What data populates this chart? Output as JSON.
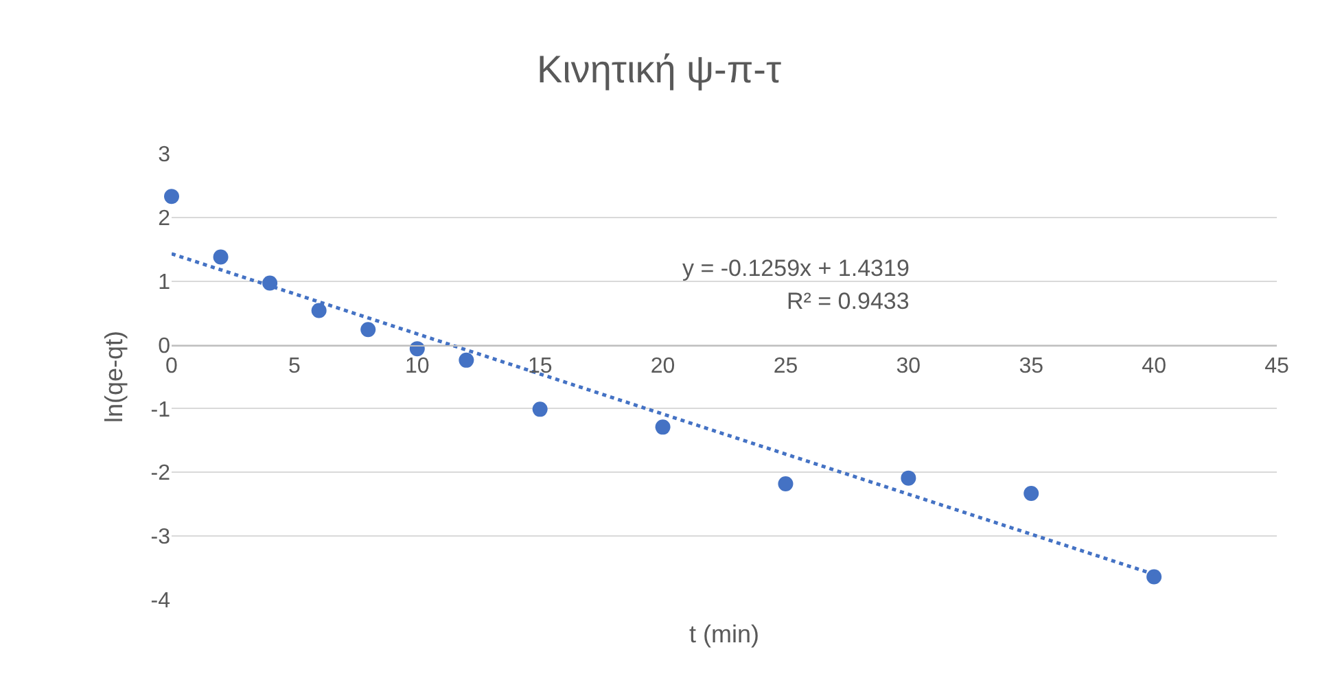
{
  "chart_data": {
    "type": "scatter",
    "title": "Κινητική ψ-π-τ",
    "xlabel": "t (min)",
    "ylabel": "ln(qe-qt)",
    "series": [
      {
        "color": "#4472c4",
        "marker": "circle",
        "x": [
          0,
          2,
          4,
          6,
          8,
          10,
          12,
          15,
          20,
          25,
          30,
          35,
          40
        ],
        "values": [
          2.33,
          1.38,
          0.97,
          0.54,
          0.24,
          -0.06,
          -0.24,
          -1.01,
          -1.29,
          -2.18,
          -2.09,
          -2.33,
          -3.64
        ]
      },
      {
        "type": "line",
        "color": "#4472c4",
        "line_style": "dotted",
        "marker": "none",
        "x": [
          0,
          40
        ],
        "values": [
          1.43,
          -3.6
        ]
      }
    ],
    "annotations": [
      "y = -0.1259x + 1.4319",
      "R² = 0.9433"
    ],
    "xlim": [
      0,
      45
    ],
    "xticks": [
      0,
      5,
      10,
      15,
      20,
      25,
      30,
      35,
      40,
      45
    ],
    "ylim": [
      -4,
      3
    ],
    "yticks": [
      -4,
      -3,
      -2,
      -1,
      0,
      1,
      2,
      3
    ],
    "grid": "y",
    "legend": false
  }
}
